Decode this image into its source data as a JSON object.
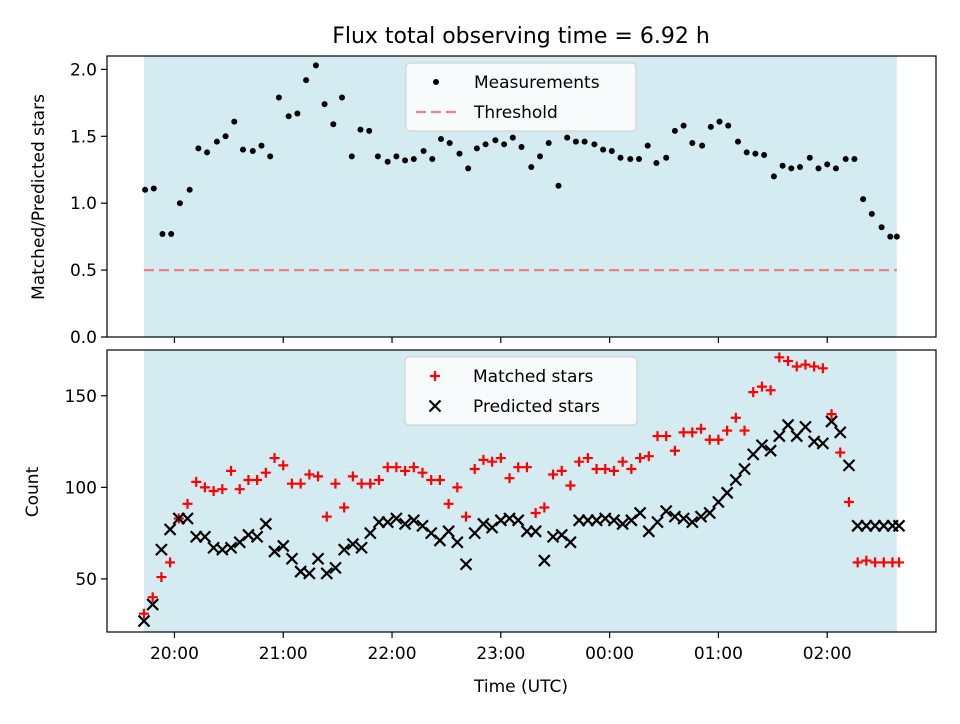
{
  "chart_data": {
    "title": "Flux total observing time = 6.92 h",
    "xlabel": "Time (UTC)",
    "x_ticks": [
      "20:00",
      "21:00",
      "22:00",
      "23:00",
      "00:00",
      "01:00",
      "02:00"
    ],
    "x_tick_hours": [
      0,
      1,
      2,
      3,
      4,
      5,
      6
    ],
    "xlim_hours": [
      -0.62,
      7.0
    ],
    "observing_span_hours": [
      -0.28,
      6.64
    ],
    "shade_color": "#d4ebf1",
    "panels": [
      {
        "type": "scatter",
        "ylabel": "Matched/Predicted stars",
        "ylim": [
          0,
          2.1
        ],
        "yticks": [
          "0.0",
          "0.5",
          "1.0",
          "1.5",
          "2.0"
        ],
        "ytick_values": [
          0,
          0.5,
          1.0,
          1.5,
          2.0
        ],
        "legend": "top-center",
        "series": [
          {
            "name": "Measurements",
            "marker": "dot",
            "color": "#000000",
            "t": [
              -0.27,
              -0.19,
              -0.11,
              -0.03,
              0.05,
              0.14,
              0.22,
              0.3,
              0.39,
              0.47,
              0.55,
              0.63,
              0.72,
              0.8,
              0.88,
              0.96,
              1.05,
              1.13,
              1.21,
              1.3,
              1.38,
              1.46,
              1.54,
              1.63,
              1.71,
              1.79,
              1.87,
              1.96,
              2.04,
              2.12,
              2.2,
              2.29,
              2.37,
              2.45,
              2.53,
              2.62,
              2.7,
              2.78,
              2.86,
              2.95,
              3.03,
              3.11,
              3.19,
              3.28,
              3.36,
              3.44,
              3.53,
              3.61,
              3.69,
              3.77,
              3.86,
              3.94,
              4.02,
              4.1,
              4.19,
              4.27,
              4.35,
              4.43,
              4.52,
              4.6,
              4.68,
              4.76,
              4.85,
              4.93,
              5.01,
              5.09,
              5.18,
              5.26,
              5.34,
              5.42,
              5.51,
              5.59,
              5.67,
              5.75,
              5.84,
              5.92,
              6.0,
              6.08,
              6.17,
              6.25,
              6.33,
              6.41,
              6.5,
              6.58,
              6.64
            ],
            "y": [
              1.1,
              1.11,
              0.77,
              0.77,
              1.0,
              1.1,
              1.41,
              1.38,
              1.46,
              1.5,
              1.61,
              1.4,
              1.39,
              1.43,
              1.35,
              1.79,
              1.65,
              1.67,
              1.92,
              2.03,
              1.74,
              1.59,
              1.79,
              1.35,
              1.55,
              1.54,
              1.35,
              1.31,
              1.35,
              1.32,
              1.33,
              1.39,
              1.33,
              1.48,
              1.45,
              1.37,
              1.26,
              1.41,
              1.44,
              1.47,
              1.44,
              1.49,
              1.42,
              1.27,
              1.35,
              1.45,
              1.13,
              1.49,
              1.46,
              1.46,
              1.44,
              1.4,
              1.39,
              1.34,
              1.33,
              1.33,
              1.43,
              1.3,
              1.34,
              1.54,
              1.58,
              1.45,
              1.43,
              1.57,
              1.61,
              1.58,
              1.46,
              1.38,
              1.37,
              1.36,
              1.2,
              1.28,
              1.26,
              1.27,
              1.34,
              1.26,
              1.29,
              1.26,
              1.33,
              1.33,
              1.03,
              0.92,
              0.82,
              0.75,
              0.75
            ]
          },
          {
            "name": "Threshold",
            "marker": "dashed-line",
            "color": "#f08080",
            "value": 0.5
          }
        ]
      },
      {
        "type": "scatter",
        "ylabel": "Count",
        "ylim": [
          21,
          175
        ],
        "yticks": [
          "50",
          "100",
          "150"
        ],
        "ytick_values": [
          50,
          100,
          150
        ],
        "legend": "top-center",
        "series": [
          {
            "name": "Matched stars",
            "marker": "plus",
            "color": "#ff0000",
            "t": [
              -0.28,
              -0.2,
              -0.12,
              -0.04,
              0.04,
              0.12,
              0.2,
              0.28,
              0.36,
              0.44,
              0.52,
              0.6,
              0.68,
              0.76,
              0.84,
              0.92,
              1.0,
              1.08,
              1.16,
              1.24,
              1.32,
              1.4,
              1.48,
              1.56,
              1.64,
              1.72,
              1.8,
              1.88,
              1.96,
              2.04,
              2.12,
              2.2,
              2.28,
              2.36,
              2.44,
              2.52,
              2.6,
              2.68,
              2.76,
              2.84,
              2.92,
              3.0,
              3.08,
              3.16,
              3.24,
              3.32,
              3.4,
              3.48,
              3.56,
              3.64,
              3.72,
              3.8,
              3.88,
              3.96,
              4.04,
              4.12,
              4.2,
              4.28,
              4.36,
              4.44,
              4.52,
              4.6,
              4.68,
              4.76,
              4.84,
              4.92,
              5.0,
              5.08,
              5.16,
              5.24,
              5.32,
              5.4,
              5.48,
              5.56,
              5.64,
              5.72,
              5.8,
              5.88,
              5.96,
              6.04,
              6.12,
              6.2,
              6.28,
              6.36,
              6.44,
              6.52,
              6.6,
              6.66
            ],
            "y": [
              31,
              40,
              51,
              59,
              83,
              91,
              103,
              100,
              98,
              99,
              109,
              99,
              104,
              104,
              108,
              116,
              112,
              102,
              102,
              107,
              106,
              84,
              102,
              89,
              106,
              102,
              102,
              104,
              111,
              111,
              109,
              111,
              108,
              104,
              104,
              91,
              100,
              84,
              110,
              115,
              114,
              116,
              105,
              111,
              111,
              86,
              89,
              107,
              109,
              101,
              114,
              116,
              110,
              110,
              109,
              114,
              110,
              116,
              117,
              128,
              128,
              120,
              130,
              130,
              132,
              126,
              126,
              131,
              138,
              131,
              152,
              155,
              153,
              171,
              169,
              166,
              167,
              166,
              165,
              140,
              119,
              92,
              59,
              60,
              59,
              59,
              59,
              59
            ],
            "t_clip_note": ""
          },
          {
            "name": "Predicted stars",
            "marker": "x",
            "color": "#000000",
            "t": [
              -0.28,
              -0.2,
              -0.12,
              -0.04,
              0.04,
              0.12,
              0.2,
              0.28,
              0.36,
              0.44,
              0.52,
              0.6,
              0.68,
              0.76,
              0.84,
              0.92,
              1.0,
              1.08,
              1.16,
              1.24,
              1.32,
              1.4,
              1.48,
              1.56,
              1.64,
              1.72,
              1.8,
              1.88,
              1.96,
              2.04,
              2.12,
              2.2,
              2.28,
              2.36,
              2.44,
              2.52,
              2.6,
              2.68,
              2.76,
              2.84,
              2.92,
              3.0,
              3.08,
              3.16,
              3.24,
              3.32,
              3.4,
              3.48,
              3.56,
              3.64,
              3.72,
              3.8,
              3.88,
              3.96,
              4.04,
              4.12,
              4.2,
              4.28,
              4.36,
              4.44,
              4.52,
              4.6,
              4.68,
              4.76,
              4.84,
              4.92,
              5.0,
              5.08,
              5.16,
              5.24,
              5.32,
              5.4,
              5.48,
              5.56,
              5.64,
              5.72,
              5.8,
              5.88,
              5.96,
              6.04,
              6.12,
              6.2,
              6.28,
              6.36,
              6.44,
              6.52,
              6.6,
              6.66
            ],
            "y": [
              27,
              36,
              66,
              77,
              83,
              83,
              73,
              73,
              67,
              66,
              67,
              70,
              74,
              73,
              80,
              65,
              68,
              61,
              54,
              53,
              61,
              53,
              56,
              66,
              69,
              67,
              75,
              81,
              81,
              83,
              80,
              82,
              79,
              75,
              71,
              76,
              70,
              58,
              75,
              80,
              78,
              82,
              83,
              82,
              76,
              76,
              60,
              73,
              74,
              70,
              82,
              82,
              82,
              83,
              82,
              80,
              82,
              86,
              76,
              81,
              87,
              84,
              83,
              81,
              84,
              86,
              92,
              97,
              104,
              110,
              118,
              123,
              120,
              128,
              134,
              128,
              133,
              125,
              124,
              136,
              130,
              112,
              79,
              79,
              79,
              79,
              79,
              79
            ]
          }
        ]
      }
    ]
  }
}
